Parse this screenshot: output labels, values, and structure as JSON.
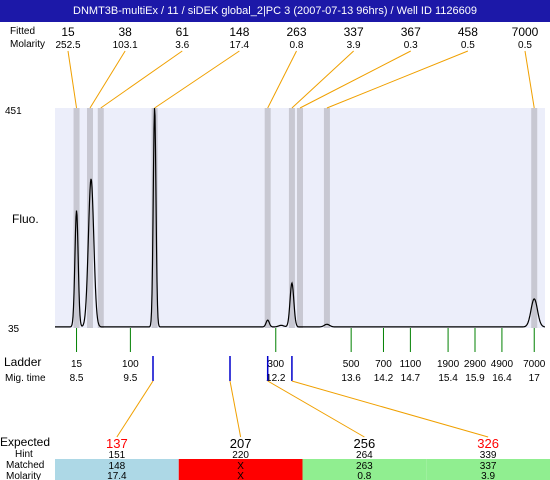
{
  "title": "DNMT3B-multiEx / 11  / siDEK global_2|PC 3 (2007-07-13 96hrs) / Well ID 1126609",
  "labels": {
    "top_row1": "Fitted",
    "top_row2": "Molarity",
    "y_axis": "Fluo.",
    "ladder": "Ladder",
    "mig_time": "Mig. time",
    "expected": "Expected",
    "hint": "Hint",
    "matched": "Matched",
    "molarity": "Molarity"
  },
  "colors": {
    "title_bg": "#1c18a8",
    "plot_bg": "#eceefa",
    "band": "#c8c8d2",
    "trace": "#000000",
    "ladder_tick": "#008000",
    "marker": "#0000cc",
    "connector": "#f0a000",
    "expected_red": "#ff0000",
    "cell_blue": "#add8e6",
    "cell_red": "#ff0000",
    "cell_green": "#90ee90"
  },
  "chart_data": {
    "type": "line",
    "y_axis_ticks": [
      "451",
      "35"
    ],
    "ylim": [
      35,
      451
    ],
    "xlim": [
      8.1,
      17.2
    ],
    "fitted_peaks": [
      {
        "size": "15",
        "molarity": "252.5",
        "time": 8.5
      },
      {
        "size": "38",
        "molarity": "103.1",
        "time": 8.75
      },
      {
        "size": "61",
        "molarity": "3.6",
        "time": 8.95
      },
      {
        "size": "148",
        "molarity": "17.4",
        "time": 9.95
      },
      {
        "size": "263",
        "molarity": "0.8",
        "time": 12.05
      },
      {
        "size": "337",
        "molarity": "3.9",
        "time": 12.5
      },
      {
        "size": "367",
        "molarity": "0.3",
        "time": 12.65
      },
      {
        "size": "458",
        "molarity": "0.5",
        "time": 13.15
      },
      {
        "size": "7000",
        "molarity": "0.5",
        "time": 17.0
      }
    ],
    "ladder": [
      {
        "size": "15",
        "time": "8.5"
      },
      {
        "size": "100",
        "time": "9.5"
      },
      {
        "size": "300",
        "time": "12.2"
      },
      {
        "size": "500",
        "time": "13.6"
      },
      {
        "size": "700",
        "time": "14.2"
      },
      {
        "size": "1100",
        "time": "14.7"
      },
      {
        "size": "1900",
        "time": "15.4"
      },
      {
        "size": "2900",
        "time": "15.9"
      },
      {
        "size": "4900",
        "time": "16.4"
      },
      {
        "size": "7000",
        "time": "17"
      }
    ],
    "trace_peaks": [
      {
        "x": 8.5,
        "y": 255,
        "w": 0.03
      },
      {
        "x": 8.77,
        "y": 315,
        "w": 0.05
      },
      {
        "x": 9.95,
        "y": 451,
        "w": 0.025
      },
      {
        "x": 12.05,
        "y": 48,
        "w": 0.03
      },
      {
        "x": 12.3,
        "y": 38,
        "w": 0.05
      },
      {
        "x": 12.5,
        "y": 118,
        "w": 0.035
      },
      {
        "x": 13.15,
        "y": 40,
        "w": 0.05
      },
      {
        "x": 17.0,
        "y": 88,
        "w": 0.06
      }
    ],
    "expected": [
      {
        "expected": "137",
        "hint": "151",
        "matched": "148",
        "molarity": "17.4",
        "status": "blue",
        "time": 9.92
      },
      {
        "expected": "207",
        "hint": "220",
        "matched": "X",
        "molarity": "X",
        "status": "red",
        "time": 11.35
      },
      {
        "expected": "256",
        "hint": "264",
        "matched": "263",
        "molarity": "0.8",
        "status": "green",
        "time": 12.05
      },
      {
        "expected": "326",
        "hint": "339",
        "matched": "337",
        "molarity": "3.9",
        "status": "green",
        "time": 12.5
      }
    ]
  }
}
